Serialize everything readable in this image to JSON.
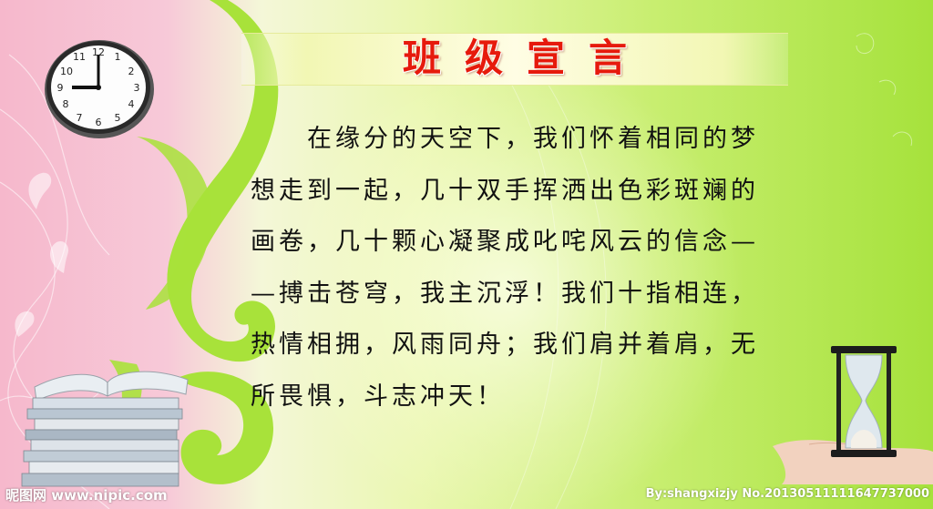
{
  "poster": {
    "title": "班级宣言",
    "body_lines": [
      "　　在缘分的天空下，我们怀着相同的梦",
      "想走到一起，几十双手挥洒出色彩斑斓的",
      "画卷，几十颗心凝聚成叱咤风云的信念—",
      "—搏击苍穹，我主沉浮！我们十指相连，",
      "热情相拥，风雨同舟；我们肩并着肩，无",
      "所畏惧，斗志冲天！"
    ]
  },
  "clock": {
    "numerals": [
      "12",
      "1",
      "2",
      "3",
      "4",
      "5",
      "6",
      "7",
      "8",
      "9",
      "10",
      "11"
    ],
    "time": "9:00"
  },
  "watermark": {
    "site": "昵图网 www.nipic.com",
    "credit": "By:shangxizjy  No.20130511111647737000"
  },
  "colors": {
    "title_red": "#e61a0c",
    "swirl_green": "#a8e23a",
    "pink": "#f6b8cc"
  }
}
